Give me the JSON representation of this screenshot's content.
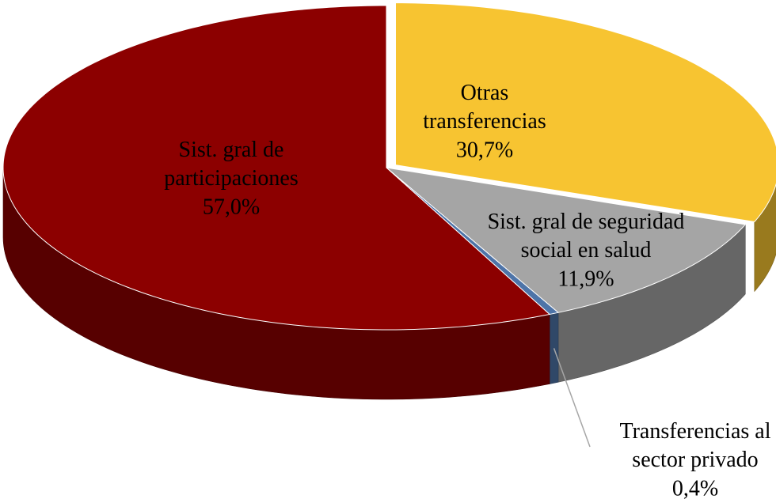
{
  "chart_data": {
    "type": "pie",
    "categories": [
      "Otras transferencias",
      "Sist. gral de seguridad social en salud",
      "Transferencias al sector privado",
      "Sist. gral de participaciones"
    ],
    "values": [
      30.7,
      11.9,
      0.4,
      57.0
    ],
    "value_labels": [
      "30,7%",
      "11,9%",
      "0,4%",
      "57,0%"
    ],
    "colors": [
      "#f7c431",
      "#a5a5a5",
      "#4e74a8",
      "#8c0000"
    ]
  }
}
